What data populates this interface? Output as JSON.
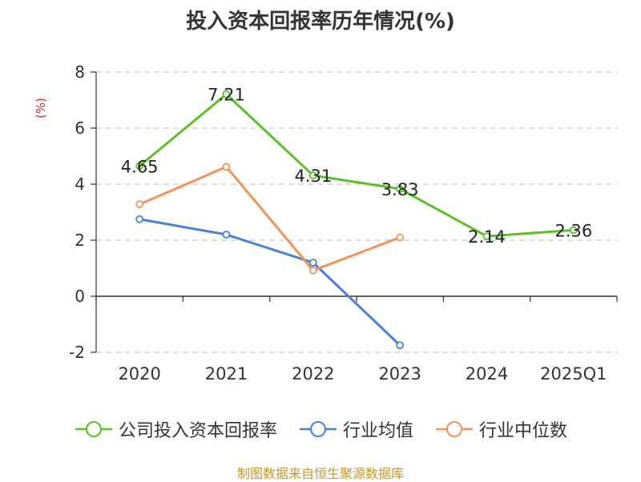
{
  "chart_data": {
    "type": "line",
    "title": "投入资本回报率历年情况(%)",
    "ylabel": "(%)",
    "xlabel": "",
    "categories": [
      "2020",
      "2021",
      "2022",
      "2023",
      "2024",
      "2025Q1"
    ],
    "ylim": [
      -2,
      8
    ],
    "yticks": [
      -2,
      0,
      2,
      4,
      6,
      8
    ],
    "grid": true,
    "legend_position": "bottom",
    "series": [
      {
        "name": "公司投入资本回报率",
        "color": "#5cbf26",
        "values": [
          4.65,
          7.21,
          4.31,
          3.83,
          2.14,
          2.36
        ],
        "show_labels": true
      },
      {
        "name": "行业均值",
        "color": "#4a7edb",
        "values": [
          2.75,
          2.2,
          1.2,
          -1.75,
          null,
          null
        ],
        "show_labels": false
      },
      {
        "name": "行业中位数",
        "color": "#f5905a",
        "values": [
          3.28,
          4.62,
          0.92,
          2.1,
          null,
          null
        ],
        "show_labels": false
      }
    ]
  },
  "source": "制图数据来自恒生聚源数据库"
}
